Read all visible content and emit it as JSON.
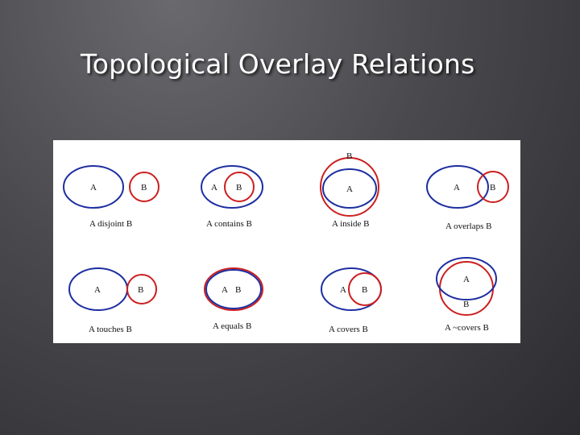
{
  "title": "Topological Overlay Relations",
  "colors": {
    "set_a": "#1d2ea0",
    "set_b": "#cc1f1f"
  },
  "panels": [
    {
      "relation": "disjoint",
      "label_a": "A",
      "label_b": "B",
      "caption": "A disjoint B"
    },
    {
      "relation": "contains",
      "label_a": "A",
      "label_b": "B",
      "caption": "A contains B"
    },
    {
      "relation": "inside",
      "label_a": "A",
      "label_b": "B",
      "caption": "A inside B"
    },
    {
      "relation": "overlaps",
      "label_a": "A",
      "label_b": "B",
      "caption": "A overlaps B"
    },
    {
      "relation": "touches",
      "label_a": "A",
      "label_b": "B",
      "caption": "A touches B"
    },
    {
      "relation": "equals",
      "label_a": "A",
      "label_b": "B",
      "caption": "A equals B"
    },
    {
      "relation": "covers",
      "label_a": "A",
      "label_b": "B",
      "caption": "A covers B"
    },
    {
      "relation": "covered-by",
      "label_a": "A",
      "label_b": "B",
      "caption": "A ~covers B"
    }
  ]
}
